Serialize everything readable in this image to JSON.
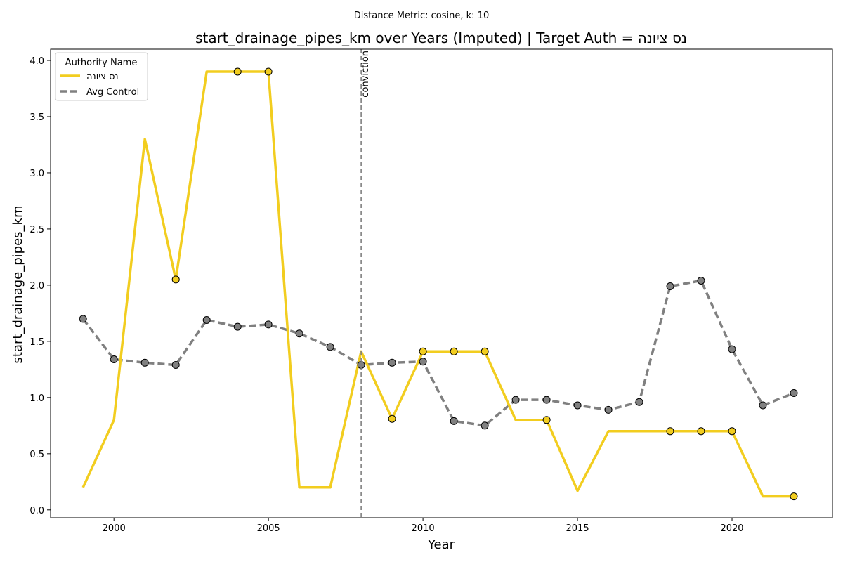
{
  "chart_data": {
    "type": "line",
    "suptitle": "Distance Metric: cosine, k: 10",
    "title": "start_drainage_pipes_km over Years (Imputed) | Target Auth = נס ציונה",
    "xlabel": "Year",
    "ylabel": "start_drainage_pipes_km",
    "xlim": [
      1997.95,
      2023.25
    ],
    "ylim": [
      -0.07,
      4.1
    ],
    "x_ticks": [
      "2000",
      "2005",
      "2010",
      "2015",
      "2020"
    ],
    "y_ticks": [
      "0.0",
      "0.5",
      "1.0",
      "1.5",
      "2.0",
      "2.5",
      "3.0",
      "3.5",
      "4.0"
    ],
    "legend": {
      "title": "Authority Name",
      "position": "top-left"
    },
    "vline": {
      "x": 2008,
      "label": "conviction",
      "color": "#808080"
    },
    "series": [
      {
        "name": "נס ציונה",
        "color": "#F2CD1F",
        "style": "solid",
        "x": [
          1999,
          2000,
          2001,
          2002,
          2003,
          2004,
          2005,
          2006,
          2007,
          2008,
          2009,
          2010,
          2011,
          2012,
          2013,
          2014,
          2015,
          2016,
          2017,
          2018,
          2019,
          2020,
          2021,
          2022
        ],
        "y": [
          0.2,
          0.8,
          3.3,
          2.05,
          3.9,
          3.9,
          3.9,
          0.2,
          0.2,
          1.41,
          0.81,
          1.41,
          1.41,
          1.41,
          0.8,
          0.8,
          0.17,
          0.7,
          0.7,
          0.7,
          0.7,
          0.7,
          0.12,
          0.12
        ],
        "markers": [
          2002,
          2004,
          2005,
          2009,
          2010,
          2011,
          2012,
          2014,
          2018,
          2019,
          2020,
          2022
        ]
      },
      {
        "name": "Avg Control",
        "color": "#808080",
        "style": "dashed",
        "x": [
          1999,
          2000,
          2001,
          2002,
          2003,
          2004,
          2005,
          2006,
          2007,
          2008,
          2009,
          2010,
          2011,
          2012,
          2013,
          2014,
          2015,
          2016,
          2017,
          2018,
          2019,
          2020,
          2021,
          2022
        ],
        "y": [
          1.7,
          1.34,
          1.31,
          1.29,
          1.69,
          1.63,
          1.65,
          1.57,
          1.45,
          1.29,
          1.31,
          1.32,
          0.79,
          0.75,
          0.98,
          0.98,
          0.93,
          0.89,
          0.96,
          1.99,
          2.04,
          1.43,
          0.93,
          1.04
        ],
        "markers": [
          1999,
          2000,
          2001,
          2002,
          2003,
          2004,
          2005,
          2006,
          2007,
          2008,
          2009,
          2010,
          2011,
          2012,
          2013,
          2014,
          2015,
          2016,
          2017,
          2018,
          2019,
          2020,
          2021,
          2022
        ]
      }
    ]
  }
}
